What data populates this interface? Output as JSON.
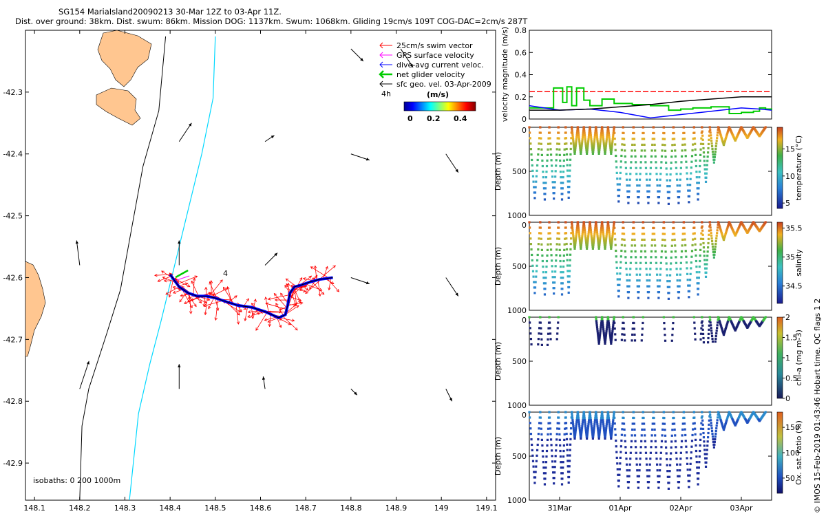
{
  "header": {
    "title": "SG154 MariaIsland20090213 30-Mar 12Z to 03-Apr 11Z.",
    "subtitle": "Dist. over ground: 38km. Dist. swum: 86km. Mission DOG: 1137km. Swum: 1068km. Gliding 19cm/s 109T COG-DAC=2cm/s 287T"
  },
  "chart_data": [
    {
      "type": "map",
      "name": "track-map",
      "xlim": [
        148.08,
        149.12
      ],
      "ylim": [
        -42.96,
        -42.2
      ],
      "xticks": [
        "148.1",
        "148.2",
        "148.3",
        "148.4",
        "148.5",
        "148.6",
        "148.7",
        "148.8",
        "148.9",
        "149",
        "149.1"
      ],
      "xtick_values": [
        148.1,
        148.2,
        148.3,
        148.4,
        148.5,
        148.6,
        148.7,
        148.8,
        148.9,
        149.0,
        149.1
      ],
      "yticks": [
        "-42.3",
        "-42.4",
        "-42.5",
        "-42.6",
        "-42.7",
        "-42.8",
        "-42.9"
      ],
      "ytick_values": [
        -42.3,
        -42.4,
        -42.5,
        -42.6,
        -42.7,
        -42.8,
        -42.9
      ],
      "isobath_label": "isobaths: 0   200  1000m",
      "track_label": "4",
      "legend": {
        "entries": [
          {
            "label": "25cm/s swim vector",
            "color": "#ff0000"
          },
          {
            "label": "GPS surface velocity",
            "color": "#ff00ff"
          },
          {
            "label": "dive-avg current veloc.",
            "color": "#0000ff"
          },
          {
            "label": "net glider velocity",
            "color": "#00cc00"
          },
          {
            "label": "sfc geo. vel. 03-Apr-2009",
            "color": "#000000"
          }
        ],
        "time_label": "4h",
        "colorbar_title": "(m/s)",
        "colorbar_ticks": [
          "0",
          "0.2",
          "0.4"
        ]
      },
      "track_points": [
        [
          148.4,
          -42.595
        ],
        [
          148.41,
          -42.605
        ],
        [
          148.42,
          -42.615
        ],
        [
          148.44,
          -42.625
        ],
        [
          148.46,
          -42.63
        ],
        [
          148.48,
          -42.63
        ],
        [
          148.5,
          -42.633
        ],
        [
          148.52,
          -42.638
        ],
        [
          148.55,
          -42.645
        ],
        [
          148.58,
          -42.648
        ],
        [
          148.61,
          -42.655
        ],
        [
          148.64,
          -42.665
        ],
        [
          148.655,
          -42.66
        ],
        [
          148.66,
          -42.645
        ],
        [
          148.665,
          -42.625
        ],
        [
          148.675,
          -42.615
        ],
        [
          148.69,
          -42.612
        ],
        [
          148.71,
          -42.607
        ],
        [
          148.73,
          -42.603
        ],
        [
          148.76,
          -42.6
        ]
      ],
      "geo_vectors": [
        {
          "lon": 148.8,
          "lat": -42.23,
          "u": 0.02,
          "v": -0.02
        },
        {
          "lon": 148.91,
          "lat": -42.23,
          "u": 0.02,
          "v": -0.03
        },
        {
          "lon": 148.42,
          "lat": -42.38,
          "u": 0.02,
          "v": 0.03
        },
        {
          "lon": 148.61,
          "lat": -42.38,
          "u": 0.015,
          "v": 0.01
        },
        {
          "lon": 148.8,
          "lat": -42.4,
          "u": 0.03,
          "v": -0.01
        },
        {
          "lon": 149.01,
          "lat": -42.4,
          "u": 0.02,
          "v": -0.03
        },
        {
          "lon": 148.2,
          "lat": -42.58,
          "u": -0.005,
          "v": 0.04
        },
        {
          "lon": 148.42,
          "lat": -42.58,
          "u": 0.0,
          "v": 0.04
        },
        {
          "lon": 148.61,
          "lat": -42.58,
          "u": 0.02,
          "v": 0.02
        },
        {
          "lon": 148.8,
          "lat": -42.6,
          "u": 0.03,
          "v": -0.01
        },
        {
          "lon": 149.01,
          "lat": -42.6,
          "u": 0.02,
          "v": -0.03
        },
        {
          "lon": 148.2,
          "lat": -42.78,
          "u": 0.015,
          "v": 0.045
        },
        {
          "lon": 148.42,
          "lat": -42.78,
          "u": 0.0,
          "v": 0.04
        },
        {
          "lon": 148.61,
          "lat": -42.78,
          "u": -0.003,
          "v": 0.02
        },
        {
          "lon": 148.8,
          "lat": -42.78,
          "u": 0.01,
          "v": -0.01
        },
        {
          "lon": 149.01,
          "lat": -42.78,
          "u": 0.01,
          "v": -0.02
        }
      ],
      "isobath_200": [
        [
          148.39,
          -42.21
        ],
        [
          148.375,
          -42.33
        ],
        [
          148.34,
          -42.42
        ],
        [
          148.315,
          -42.52
        ],
        [
          148.29,
          -42.62
        ],
        [
          148.26,
          -42.69
        ],
        [
          148.22,
          -42.78
        ],
        [
          148.205,
          -42.84
        ],
        [
          148.2,
          -42.96
        ]
      ],
      "isobath_1000": [
        [
          148.5,
          -42.21
        ],
        [
          148.495,
          -42.31
        ],
        [
          148.47,
          -42.4
        ],
        [
          148.44,
          -42.49
        ],
        [
          148.41,
          -42.58
        ],
        [
          148.38,
          -42.67
        ],
        [
          148.355,
          -42.74
        ],
        [
          148.33,
          -42.82
        ],
        [
          148.31,
          -42.96
        ]
      ]
    },
    {
      "type": "line",
      "name": "velocity-panel",
      "ylabel": "velocity magnitude (m/s)",
      "ylim": [
        0,
        0.8
      ],
      "yticks": [
        "0",
        "0.2",
        "0.4",
        "0.6",
        "0.8"
      ],
      "ytick_values": [
        0,
        0.2,
        0.4,
        0.6,
        0.8
      ],
      "xlim": [
        0,
        4
      ],
      "series": [
        {
          "name": "25cm/s swim vector",
          "color": "#ff0000",
          "dashed": true,
          "x": [
            0,
            4
          ],
          "y": [
            0.25,
            0.25
          ]
        },
        {
          "name": "net glider velocity",
          "color": "#00cc00",
          "x": [
            0,
            0.35,
            0.4,
            0.55,
            0.62,
            0.7,
            0.78,
            0.9,
            1.0,
            1.2,
            1.4,
            1.7,
            2.0,
            2.3,
            2.5,
            2.7,
            3.0,
            3.3,
            3.5,
            3.7,
            3.8,
            3.9,
            4.0
          ],
          "y": [
            0.1,
            0.1,
            0.28,
            0.15,
            0.29,
            0.12,
            0.28,
            0.17,
            0.12,
            0.18,
            0.14,
            0.13,
            0.12,
            0.08,
            0.09,
            0.1,
            0.11,
            0.05,
            0.06,
            0.07,
            0.1,
            0.09,
            0.08
          ]
        },
        {
          "name": "dive-avg current veloc.",
          "color": "#0000ff",
          "x": [
            0,
            0.5,
            1.0,
            1.5,
            2.0,
            2.5,
            3.0,
            3.5,
            3.8,
            4.0
          ],
          "y": [
            0.12,
            0.08,
            0.09,
            0.06,
            0.01,
            0.04,
            0.07,
            0.1,
            0.09,
            0.08
          ]
        },
        {
          "name": "sfc geo. vel.",
          "color": "#000000",
          "x": [
            0,
            0.5,
            1.0,
            1.5,
            2.0,
            2.5,
            3.0,
            3.5,
            4.0
          ],
          "y": [
            0.08,
            0.08,
            0.09,
            0.11,
            0.13,
            0.16,
            0.18,
            0.2,
            0.2
          ]
        }
      ]
    },
    {
      "type": "scatter",
      "name": "temperature-panel",
      "ylabel": "Depth (m)",
      "clabel": "temperature (°C)",
      "ylim": [
        1000,
        0
      ],
      "clim": [
        4,
        19
      ],
      "cticks": [
        "5",
        "10",
        "15"
      ],
      "ctick_values": [
        5,
        10,
        15
      ],
      "yticks": [
        "0",
        "500",
        "1000"
      ],
      "dives": [
        {
          "t": 0.0,
          "d": 800
        },
        {
          "t": 0.18,
          "d": 820
        },
        {
          "t": 0.33,
          "d": 810
        },
        {
          "t": 0.48,
          "d": 820
        },
        {
          "t": 0.6,
          "d": 800
        },
        {
          "t": 0.7,
          "d": 300
        },
        {
          "t": 0.8,
          "d": 300
        },
        {
          "t": 0.9,
          "d": 300
        },
        {
          "t": 1.0,
          "d": 300
        },
        {
          "t": 1.1,
          "d": 300
        },
        {
          "t": 1.2,
          "d": 300
        },
        {
          "t": 1.3,
          "d": 300
        },
        {
          "t": 1.4,
          "d": 300
        },
        {
          "t": 1.55,
          "d": 860
        },
        {
          "t": 1.72,
          "d": 860
        },
        {
          "t": 1.88,
          "d": 860
        },
        {
          "t": 2.05,
          "d": 860
        },
        {
          "t": 2.22,
          "d": 870
        },
        {
          "t": 2.38,
          "d": 860
        },
        {
          "t": 2.55,
          "d": 850
        },
        {
          "t": 2.72,
          "d": 820
        },
        {
          "t": 2.85,
          "d": 620
        },
        {
          "t": 2.98,
          "d": 400
        },
        {
          "t": 3.12,
          "d": 200
        },
        {
          "t": 3.3,
          "d": 150
        },
        {
          "t": 3.5,
          "d": 120
        },
        {
          "t": 3.7,
          "d": 100
        },
        {
          "t": 3.9,
          "d": 100
        }
      ]
    },
    {
      "type": "scatter",
      "name": "salinity-panel",
      "ylabel": "Depth (m)",
      "clabel": "salinity",
      "ylim": [
        1000,
        0
      ],
      "clim": [
        34.2,
        35.6
      ],
      "cticks": [
        "34.5",
        "35",
        "35.5"
      ],
      "ctick_values": [
        34.5,
        35.0,
        35.5
      ],
      "yticks": [
        "0",
        "500",
        "1000"
      ]
    },
    {
      "type": "scatter",
      "name": "chla-panel",
      "ylabel": "Depth (m)",
      "clabel": "chl-a (mg m-3)",
      "ylim": [
        1000,
        0
      ],
      "clim": [
        0,
        2
      ],
      "cticks": [
        "0",
        "0.5",
        "1",
        "1.5",
        "2"
      ],
      "ctick_values": [
        0,
        0.5,
        1,
        1.5,
        2
      ],
      "yticks": [
        "0",
        "500",
        "1000"
      ]
    },
    {
      "type": "scatter",
      "name": "oxygen-panel",
      "ylabel": "Depth (m)",
      "clabel": "Ox. sat. ratio (%)",
      "ylim": [
        1000,
        0
      ],
      "clim": [
        20,
        180
      ],
      "cticks": [
        "50",
        "100",
        "150"
      ],
      "ctick_values": [
        50,
        100,
        150
      ],
      "yticks": [
        "0",
        "500",
        "1000"
      ],
      "xticks": [
        "31Mar",
        "01Apr",
        "02Apr",
        "03Apr"
      ],
      "xtick_values": [
        0.5,
        1.5,
        2.5,
        3.5
      ]
    }
  ],
  "footer": {
    "credit": "© IMOS 15-Feb-2019 01:43:46 Hobart time. QC flags 1  2"
  }
}
